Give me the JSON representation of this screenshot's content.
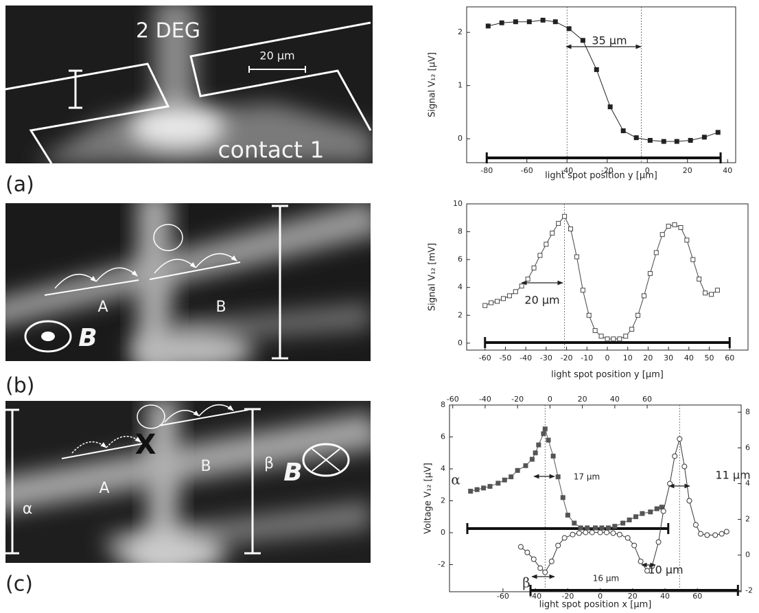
{
  "images": [
    {
      "label": "(a)",
      "texts": [
        "2 DEG",
        "20 µm",
        "contact 1"
      ]
    },
    {
      "label": "(b)",
      "texts": [
        "A",
        "B",
        "B"
      ]
    },
    {
      "label": "(c)",
      "texts": [
        "X",
        "A",
        "B",
        "β",
        "B",
        "α"
      ]
    }
  ],
  "chart_data": [
    {
      "type": "line",
      "xlabel": "light spot position y [µm]",
      "ylabel": "Signal V₁₂ [µV]",
      "xlim": [
        -90,
        44
      ],
      "ylim": [
        -0.45,
        2.48
      ],
      "xticks": [
        -80,
        -60,
        -40,
        -20,
        0,
        20,
        40
      ],
      "yticks": [
        0,
        1,
        2
      ],
      "x": [
        -79.3,
        -72.5,
        -65.6,
        -58.8,
        -52,
        -45.8,
        -39,
        -32.1,
        -25.3,
        -18.5,
        -12,
        -5.5,
        1.4,
        8.2,
        14.7,
        21.5,
        28.4,
        35.2
      ],
      "series": [
        {
          "color": "#222222",
          "marker": "square",
          "values": [
            2.12,
            2.18,
            2.2,
            2.2,
            2.23,
            2.2,
            2.07,
            1.85,
            1.3,
            0.6,
            0.15,
            0.02,
            -0.03,
            -0.05,
            -0.05,
            -0.03,
            0.03,
            0.12
          ]
        }
      ],
      "vlines": [
        -40,
        -3
      ],
      "spans": [
        [
          -80,
          36.5
        ]
      ],
      "annotations": [
        "35 µm"
      ]
    },
    {
      "type": "line",
      "xlabel": "light spot position y [µm]",
      "ylabel": "Signal V₁₂ [mV]",
      "xlim": [
        -69,
        69
      ],
      "ylim": [
        -0.5,
        10
      ],
      "xticks": [
        -60,
        -50,
        -40,
        -30,
        -20,
        -10,
        0,
        10,
        20,
        30,
        40,
        50,
        60
      ],
      "yticks": [
        0,
        2,
        4,
        6,
        8,
        10
      ],
      "x": [
        -60,
        -57,
        -54,
        -51,
        -48,
        -45,
        -42,
        -39,
        -36,
        -33,
        -30,
        -27,
        -24,
        -21,
        -18,
        -15,
        -12,
        -9,
        -6,
        -3,
        0,
        3,
        6,
        9,
        12,
        15,
        18,
        21,
        24,
        27,
        30,
        33,
        36,
        39,
        42,
        45,
        48,
        51,
        54
      ],
      "series": [
        {
          "color": "#444444",
          "marker": "open-square",
          "values": [
            2.7,
            2.9,
            3.0,
            3.2,
            3.4,
            3.7,
            4.1,
            4.6,
            5.4,
            6.3,
            7.1,
            7.9,
            8.6,
            9.1,
            8.2,
            6.2,
            3.8,
            2.0,
            0.9,
            0.5,
            0.3,
            0.3,
            0.3,
            0.5,
            1.0,
            2.0,
            3.4,
            5.0,
            6.5,
            7.8,
            8.4,
            8.5,
            8.3,
            7.4,
            6.0,
            4.6,
            3.6,
            3.5,
            3.8
          ]
        }
      ],
      "vlines": [
        -21
      ],
      "spans": [
        [
          -60,
          60
        ]
      ],
      "annotations": [
        "20 µm"
      ]
    },
    {
      "type": "line",
      "xlabel": "light spot position x [µm]",
      "ylabel": "Voltage V₁₂ [µV]",
      "xlim": [
        -93,
        87
      ],
      "ylim": [
        -3.7,
        8
      ],
      "y2lim": [
        -2.05,
        8.4
      ],
      "x2lim": [
        -62,
        118
      ],
      "xticks": [
        -60,
        -40,
        -20,
        0,
        20,
        40,
        60
      ],
      "x2ticks": [
        -60,
        -40,
        -20,
        0,
        20,
        40,
        60
      ],
      "yticks": [
        -2,
        0,
        2,
        4,
        6,
        8
      ],
      "y2ticks": [
        -2,
        0,
        2,
        4,
        6,
        8
      ],
      "series": [
        {
          "name": "α",
          "color": "#555555",
          "marker": "square",
          "x": [
            -80,
            -76,
            -72,
            -68,
            -63,
            -59,
            -55,
            -51,
            -46,
            -42,
            -40,
            -38,
            -35,
            -34,
            -32,
            -29,
            -26,
            -23,
            -20,
            -16,
            -12,
            -8,
            -3,
            1,
            5,
            9,
            14,
            18,
            22,
            26,
            31,
            35,
            38
          ],
          "values": [
            2.6,
            2.7,
            2.8,
            2.9,
            3.1,
            3.3,
            3.5,
            3.9,
            4.2,
            4.6,
            5.0,
            5.5,
            6.2,
            6.5,
            5.8,
            4.8,
            3.5,
            2.2,
            1.1,
            0.6,
            0.3,
            0.3,
            0.3,
            0.3,
            0.3,
            0.4,
            0.6,
            0.8,
            1.0,
            1.2,
            1.3,
            1.5,
            1.6
          ]
        },
        {
          "name": "β",
          "color": "#333333",
          "marker": "open-circle",
          "axis": "y2",
          "x": [
            -49,
            -45,
            -41,
            -37,
            -34,
            -30,
            -26,
            -22,
            -17,
            -13,
            -9,
            -5,
            0,
            4,
            8,
            12,
            17,
            21,
            25,
            29,
            32,
            36,
            39,
            43,
            46,
            49,
            52,
            55,
            59,
            62,
            66,
            71,
            75,
            78
          ],
          "values": [
            0.46,
            0.15,
            -0.23,
            -0.73,
            -0.96,
            -0.35,
            0.54,
            0.96,
            1.15,
            1.23,
            1.27,
            1.27,
            1.27,
            1.27,
            1.23,
            1.15,
            0.96,
            0.54,
            -0.35,
            -0.88,
            -0.62,
            0.73,
            2.46,
            4.0,
            5.54,
            6.5,
            4.96,
            3.04,
            1.69,
            1.19,
            1.12,
            1.12,
            1.19,
            1.31
          ]
        }
      ],
      "vlines": [
        -34,
        49
      ],
      "spans": [
        [
          -82,
          42
        ],
        [
          -43,
          85
        ]
      ],
      "annotations": [
        "17 µm",
        "11 µm",
        "16 µm",
        "10 µm"
      ]
    }
  ]
}
